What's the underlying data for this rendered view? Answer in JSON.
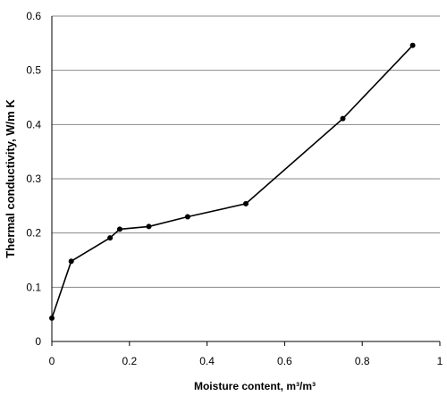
{
  "chart_data": {
    "type": "line",
    "title": "",
    "xlabel": "Moisture content, m³/m³",
    "ylabel": "Thermal conductivity, W/m K",
    "xlim": [
      0,
      1
    ],
    "ylim": [
      0,
      0.6
    ],
    "xticks": [
      "0",
      "0.2",
      "0.4",
      "0.6",
      "0.8",
      "1"
    ],
    "yticks": [
      "0",
      "0.1",
      "0.2",
      "0.3",
      "0.4",
      "0.5",
      "0.6"
    ],
    "grid": "horizontal",
    "legend": "none",
    "series": [
      {
        "x": [
          0,
          0.05,
          0.15,
          0.175,
          0.25,
          0.35,
          0.5,
          0.75,
          0.93
        ],
        "y": [
          0.043,
          0.148,
          0.191,
          0.207,
          0.212,
          0.23,
          0.254,
          0.411,
          0.546
        ],
        "color": "#000000"
      }
    ]
  }
}
